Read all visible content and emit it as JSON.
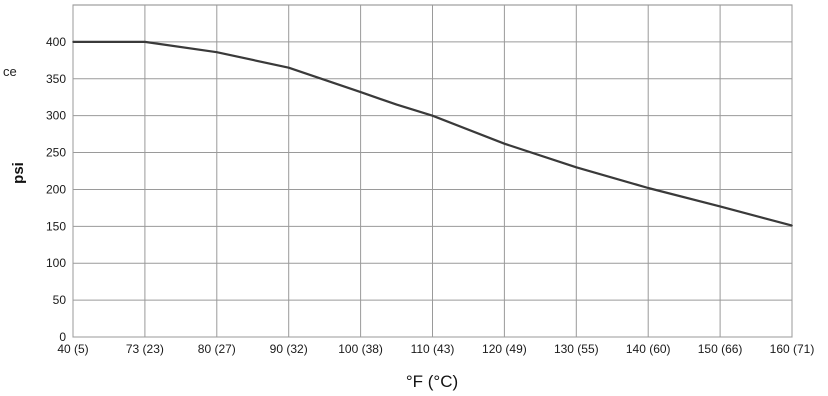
{
  "chart_data": {
    "type": "line",
    "ylabel": "psi",
    "xlabel": "°F (°C)",
    "edge_text": "ce",
    "x_tick_labels": [
      "40 (5)",
      "73 (23)",
      "80 (27)",
      "90 (32)",
      "100 (38)",
      "110 (43)",
      "120 (49)",
      "130 (55)",
      "140 (60)",
      "150 (66)",
      "160 (71)"
    ],
    "y_ticks": [
      0,
      50,
      100,
      150,
      200,
      250,
      300,
      350,
      400
    ],
    "ylim": [
      0,
      450
    ],
    "grid": true,
    "series": [
      {
        "color": "#3a3a3a",
        "points": [
          {
            "cat": 0,
            "y": 400
          },
          {
            "cat": 1,
            "y": 400
          },
          {
            "cat": 2,
            "y": 386
          },
          {
            "cat": 3,
            "y": 365
          },
          {
            "cat": 4,
            "y": 332
          },
          {
            "cat": 4.5,
            "y": 315
          },
          {
            "cat": 5,
            "y": 300
          },
          {
            "cat": 6,
            "y": 262
          },
          {
            "cat": 7,
            "y": 230
          },
          {
            "cat": 8,
            "y": 202
          },
          {
            "cat": 9,
            "y": 177
          },
          {
            "cat": 10,
            "y": 151
          }
        ]
      }
    ]
  }
}
